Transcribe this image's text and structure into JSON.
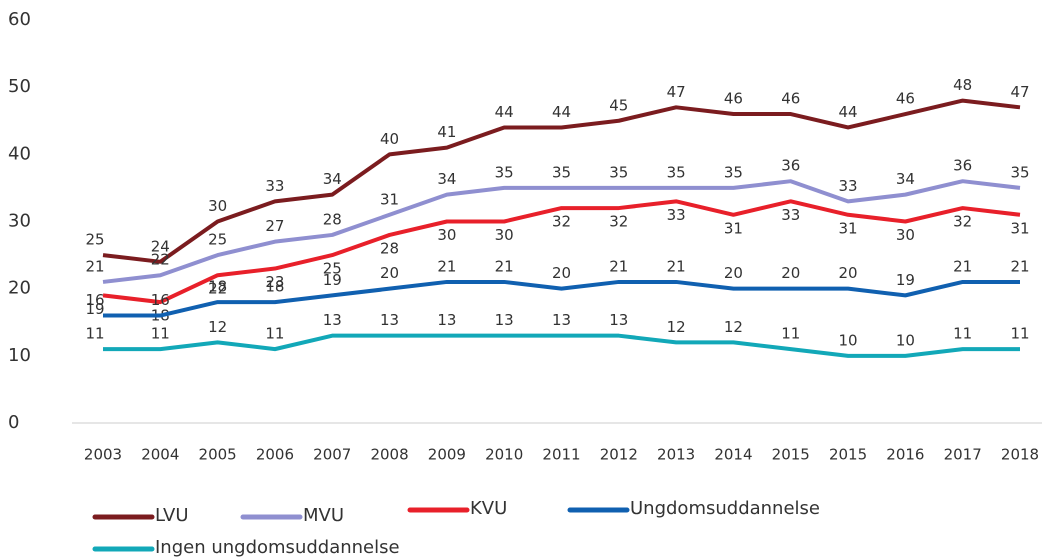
{
  "chart_data": {
    "type": "line",
    "categories": [
      "2003",
      "2004",
      "2005",
      "2006",
      "2007",
      "2008",
      "2009",
      "2010",
      "2011",
      "2012",
      "2013",
      "2014",
      "2015",
      "2015",
      "2016",
      "2017",
      "2018"
    ],
    "series": [
      {
        "name": "LVU",
        "color": "#7b1c1f",
        "values": [
          25,
          24,
          30,
          33,
          34,
          40,
          41,
          44,
          44,
          45,
          47,
          46,
          46,
          44,
          46,
          48,
          47
        ]
      },
      {
        "name": "MVU",
        "color": "#8f8fd0",
        "values": [
          21,
          22,
          25,
          27,
          28,
          31,
          34,
          35,
          35,
          35,
          35,
          35,
          36,
          33,
          34,
          36,
          35
        ]
      },
      {
        "name": "KVU",
        "color": "#e8202a",
        "values": [
          19,
          18,
          22,
          23,
          25,
          28,
          30,
          30,
          32,
          32,
          33,
          31,
          33,
          31,
          30,
          32,
          31
        ]
      },
      {
        "name": "Ungdomsuddannelse",
        "color": "#1060b0",
        "values": [
          16,
          16,
          18,
          18,
          19,
          20,
          21,
          21,
          20,
          21,
          21,
          20,
          20,
          20,
          19,
          21,
          21
        ]
      },
      {
        "name": "Ingen ungdomsuddannelse",
        "color": "#12a8b8",
        "values": [
          11,
          11,
          12,
          11,
          13,
          13,
          13,
          13,
          13,
          13,
          12,
          12,
          11,
          10,
          10,
          11,
          11
        ]
      }
    ],
    "ylim": [
      0,
      60
    ],
    "yticks": [
      0,
      10,
      20,
      30,
      40,
      50,
      60
    ],
    "grid": false
  }
}
